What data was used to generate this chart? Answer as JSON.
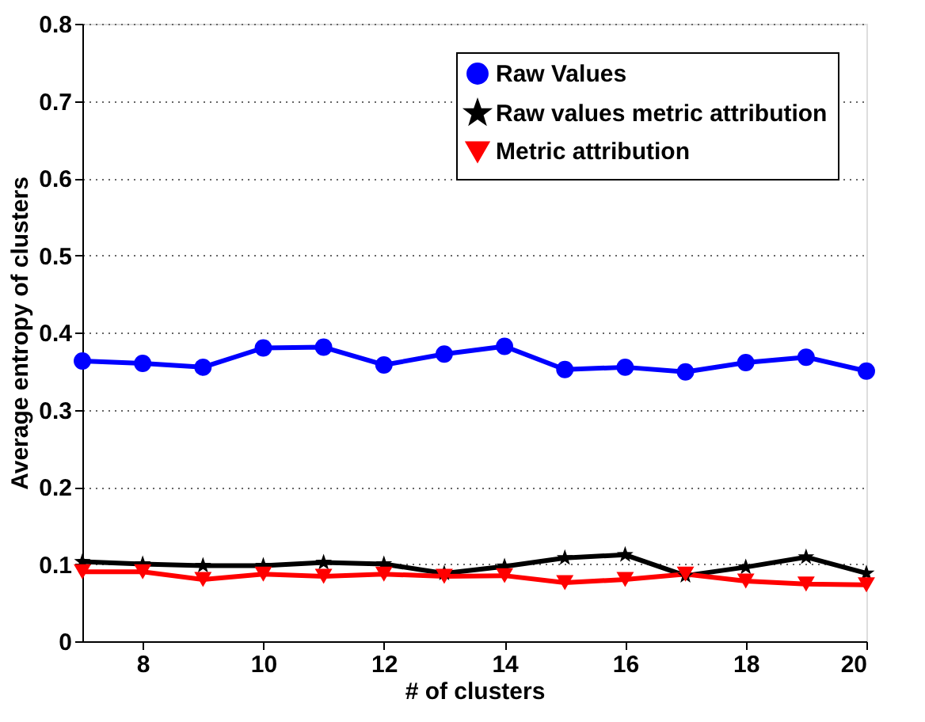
{
  "chart_data": {
    "type": "line",
    "xlabel": "# of clusters",
    "ylabel": "Average entropy of clusters",
    "x": [
      7,
      8,
      9,
      10,
      11,
      12,
      13,
      14,
      15,
      16,
      17,
      18,
      19,
      20
    ],
    "series": [
      {
        "name": "Raw Values",
        "color": "#0000ff",
        "marker": "circle",
        "values": [
          0.363,
          0.36,
          0.355,
          0.38,
          0.381,
          0.358,
          0.372,
          0.382,
          0.352,
          0.355,
          0.349,
          0.361,
          0.368,
          0.35
        ]
      },
      {
        "name": "Raw values metric attribution",
        "color": "#000000",
        "marker": "star",
        "values": [
          0.103,
          0.1,
          0.098,
          0.098,
          0.102,
          0.1,
          0.088,
          0.097,
          0.108,
          0.112,
          0.085,
          0.096,
          0.109,
          0.088
        ]
      },
      {
        "name": "Metric attribution",
        "color": "#ff0000",
        "marker": "triangle",
        "values": [
          0.09,
          0.09,
          0.08,
          0.087,
          0.084,
          0.087,
          0.084,
          0.085,
          0.076,
          0.08,
          0.087,
          0.078,
          0.074,
          0.073
        ]
      }
    ],
    "xlim": [
      7,
      20
    ],
    "xticks": [
      8,
      10,
      12,
      14,
      16,
      18,
      20
    ],
    "ylim": [
      0,
      0.8
    ],
    "yticks": [
      0,
      0.1,
      0.2,
      0.3,
      0.4,
      0.5,
      0.6,
      0.7,
      0.8
    ],
    "grid": "y",
    "legend": "top right",
    "line_style": "solid"
  }
}
